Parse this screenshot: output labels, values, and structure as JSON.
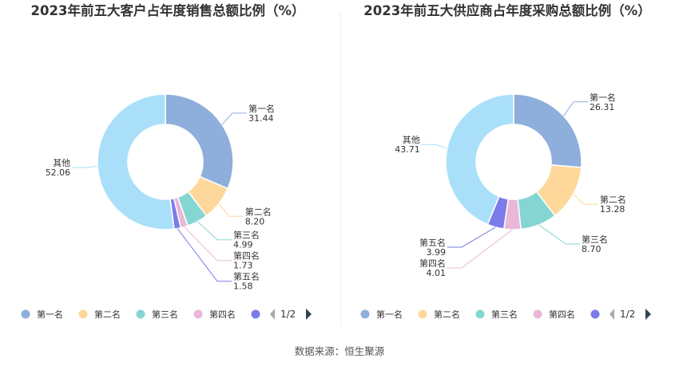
{
  "chart_data": [
    {
      "type": "pie",
      "title": "2023年前五大客户占年度销售总额比例（%）",
      "categories": [
        "第一名",
        "第二名",
        "第三名",
        "第四名",
        "第五名",
        "其他"
      ],
      "values": [
        31.44,
        8.2,
        4.99,
        1.73,
        1.58,
        52.06
      ],
      "value_labels": [
        "31.44",
        "8.20",
        "4.99",
        "1.73",
        "1.58",
        "52.06"
      ],
      "colors": [
        "#8eaedb",
        "#fdd89a",
        "#85d6d3",
        "#e9b8d8",
        "#7b7bea",
        "#a9dff9"
      ],
      "legend": {
        "position": "bottom",
        "items": [
          "第一名",
          "第二名",
          "第三名",
          "第四名"
        ],
        "page": "1/2"
      },
      "donut": true
    },
    {
      "type": "pie",
      "title": "2023年前五大供应商占年度采购总额比例（%）",
      "categories": [
        "第一名",
        "第二名",
        "第三名",
        "第四名",
        "第五名",
        "其他"
      ],
      "values": [
        26.31,
        13.28,
        8.7,
        4.01,
        3.99,
        43.71
      ],
      "value_labels": [
        "26.31",
        "13.28",
        "8.70",
        "4.01",
        "3.99",
        "43.71"
      ],
      "colors": [
        "#8eaedb",
        "#fdd89a",
        "#85d6d3",
        "#e9b8d8",
        "#7b7bea",
        "#a9dff9"
      ],
      "legend": {
        "position": "bottom",
        "items": [
          "第一名",
          "第二名",
          "第三名",
          "第四名"
        ],
        "page": "1/2"
      },
      "donut": true
    }
  ],
  "source": "数据来源：恒生聚源"
}
